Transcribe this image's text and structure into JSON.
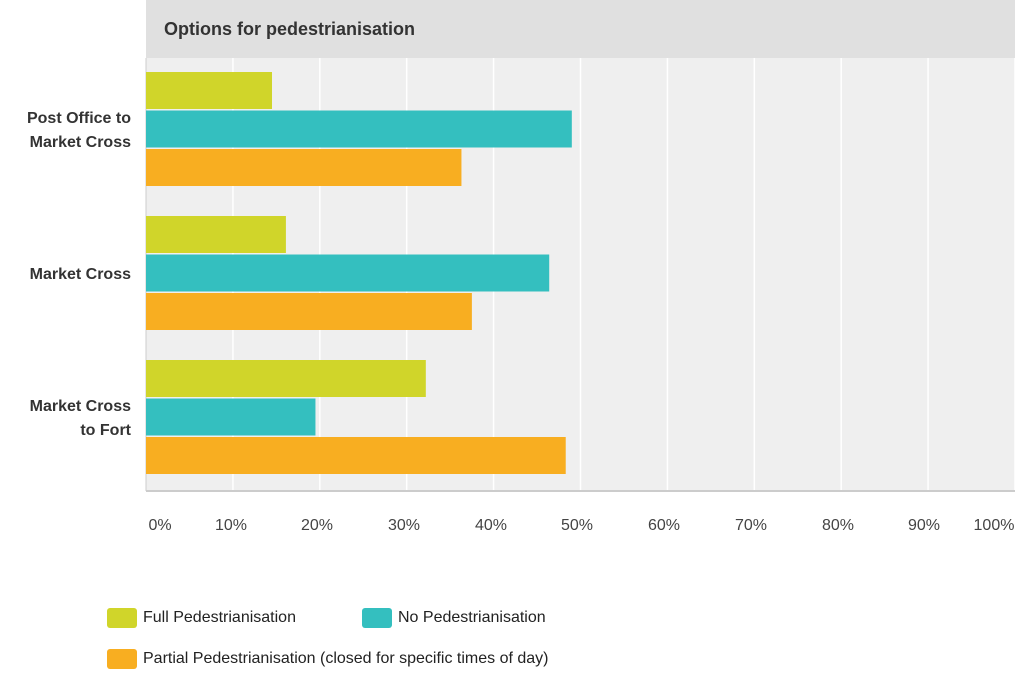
{
  "chart_data": {
    "type": "bar",
    "orientation": "horizontal",
    "title": "Options for pedestrianisation",
    "categories": [
      "Post Office to Market Cross",
      "Market Cross",
      "Market Cross to Fort"
    ],
    "category_lines": [
      [
        "Post Office to",
        "Market Cross"
      ],
      [
        "Market Cross"
      ],
      [
        "Market Cross",
        "to Fort"
      ]
    ],
    "series": [
      {
        "name": "Full Pedestrianisation",
        "color": "#d0d52a",
        "values": [
          14.5,
          16.1,
          32.2
        ]
      },
      {
        "name": "No Pedestrianisation",
        "color": "#34bfbf",
        "values": [
          49.0,
          46.4,
          19.5
        ]
      },
      {
        "name": "Partial Pedestrianisation (closed for specific times of day)",
        "color": "#f8ae21",
        "values": [
          36.3,
          37.5,
          48.3
        ]
      }
    ],
    "xlim": [
      0,
      100
    ],
    "x_ticks": [
      "0%",
      "10%",
      "20%",
      "30%",
      "40%",
      "50%",
      "60%",
      "70%",
      "80%",
      "90%",
      "100%"
    ],
    "grid": true,
    "legend_position": "bottom-left"
  }
}
